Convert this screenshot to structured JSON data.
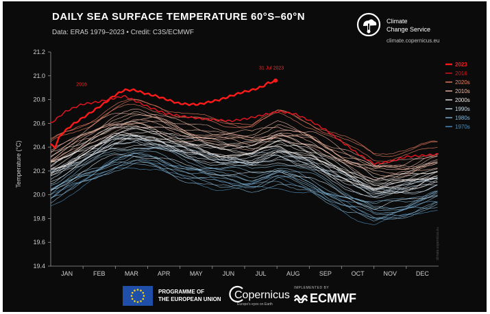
{
  "header": {
    "title": "DAILY SEA SURFACE TEMPERATURE 60°S–60°N",
    "subtitle": "Data: ERA5 1979–2023 • Credit: C3S/ECMWF"
  },
  "brand": {
    "c3s_line1": "Climate",
    "c3s_line2": "Change Service",
    "c3s_url": "climate.copernicus.eu",
    "eu_line1": "PROGRAMME OF",
    "eu_line2": "THE EUROPEAN UNION",
    "copernicus": "Copernicus",
    "copernicus_tagline": "Europe's eyes on Earth",
    "ecmwf_small": "IMPLEMENTED BY",
    "ecmwf": "ECMWF",
    "watermark": "climate.copernicus.eu"
  },
  "colors": {
    "background": "#0b0b0b",
    "highlight_2023": "#ff1a1a",
    "highlight_2016": "#e0151f",
    "decade_2020s": "#f08060",
    "decade_2010s": "#f0b8a4",
    "decade_2000s": "#f0e8e4",
    "decade_1990s": "#c8dcea",
    "decade_1980s": "#84b6d6",
    "decade_1970s": "#4f8fc0"
  },
  "chart_data": {
    "type": "line",
    "title": "DAILY SEA SURFACE TEMPERATURE 60°S–60°N",
    "xlabel": "",
    "ylabel": "Temperature (°C)",
    "categories": [
      "JAN",
      "FEB",
      "MAR",
      "APR",
      "MAY",
      "JUN",
      "JUL",
      "AUG",
      "SEP",
      "OCT",
      "NOV",
      "DEC"
    ],
    "ylim": [
      19.4,
      21.2
    ],
    "yticks": [
      "19.4",
      "19.6",
      "19.8",
      "20.0",
      "20.2",
      "20.4",
      "20.6",
      "20.8",
      "21.0",
      "21.2"
    ],
    "grid": false,
    "legend_position": "right",
    "legend": [
      {
        "label": "2023",
        "color": "#ff1a1a",
        "bold": true
      },
      {
        "label": "2016",
        "color": "#e0151f",
        "bold": false
      },
      {
        "label": "2020s",
        "color": "#f08060",
        "bold": false
      },
      {
        "label": "2010s",
        "color": "#f0b8a4",
        "bold": false
      },
      {
        "label": "2000s",
        "color": "#f0e8e4",
        "bold": false
      },
      {
        "label": "1990s",
        "color": "#c8dcea",
        "bold": false
      },
      {
        "label": "1980s",
        "color": "#84b6d6",
        "bold": false
      },
      {
        "label": "1970s",
        "color": "#4f8fc0",
        "bold": false
      }
    ],
    "annotations": [
      {
        "label": "31 Jul 2023",
        "x_day": 212,
        "y": 20.96
      },
      {
        "label": "2016",
        "x_day": 30,
        "y": 20.88
      }
    ],
    "series": [
      {
        "name": "2023",
        "color": "#ff1a1a",
        "width": 2.4,
        "points": [
          [
            1,
            20.42
          ],
          [
            5,
            20.4
          ],
          [
            10,
            20.5
          ],
          [
            20,
            20.58
          ],
          [
            30,
            20.64
          ],
          [
            40,
            20.7
          ],
          [
            50,
            20.76
          ],
          [
            60,
            20.83
          ],
          [
            70,
            20.88
          ],
          [
            80,
            20.88
          ],
          [
            90,
            20.85
          ],
          [
            100,
            20.83
          ],
          [
            110,
            20.8
          ],
          [
            120,
            20.77
          ],
          [
            130,
            20.76
          ],
          [
            140,
            20.76
          ],
          [
            150,
            20.78
          ],
          [
            160,
            20.8
          ],
          [
            170,
            20.83
          ],
          [
            180,
            20.86
          ],
          [
            190,
            20.88
          ],
          [
            200,
            20.91
          ],
          [
            205,
            20.94
          ],
          [
            210,
            20.95
          ],
          [
            212,
            20.96
          ]
        ]
      },
      {
        "name": "2016",
        "color": "#e0151f",
        "width": 1.5,
        "points": [
          [
            1,
            20.6
          ],
          [
            15,
            20.7
          ],
          [
            30,
            20.76
          ],
          [
            45,
            20.78
          ],
          [
            60,
            20.81
          ],
          [
            70,
            20.83
          ],
          [
            80,
            20.79
          ],
          [
            95,
            20.73
          ],
          [
            110,
            20.68
          ],
          [
            125,
            20.66
          ],
          [
            140,
            20.64
          ],
          [
            155,
            20.63
          ],
          [
            170,
            20.62
          ],
          [
            185,
            20.64
          ],
          [
            200,
            20.67
          ],
          [
            215,
            20.7
          ],
          [
            230,
            20.68
          ],
          [
            245,
            20.62
          ],
          [
            260,
            20.54
          ],
          [
            275,
            20.44
          ],
          [
            290,
            20.34
          ],
          [
            305,
            20.26
          ],
          [
            320,
            20.28
          ],
          [
            335,
            20.32
          ],
          [
            350,
            20.33
          ],
          [
            365,
            20.34
          ]
        ]
      }
    ],
    "climatology_decades": [
      {
        "decade": "1970s",
        "color": "#4f8fc0",
        "years": 2,
        "base": [
          [
            1,
            19.95
          ],
          [
            30,
            20.1
          ],
          [
            60,
            20.25
          ],
          [
            80,
            20.28
          ],
          [
            100,
            20.26
          ],
          [
            130,
            20.17
          ],
          [
            160,
            20.1
          ],
          [
            190,
            20.08
          ],
          [
            215,
            20.12
          ],
          [
            245,
            20.05
          ],
          [
            275,
            19.9
          ],
          [
            305,
            19.78
          ],
          [
            335,
            19.84
          ],
          [
            365,
            19.92
          ]
        ]
      },
      {
        "decade": "1980s",
        "color": "#84b6d6",
        "years": 10,
        "base": [
          [
            1,
            20.02
          ],
          [
            30,
            20.16
          ],
          [
            60,
            20.3
          ],
          [
            80,
            20.33
          ],
          [
            100,
            20.31
          ],
          [
            130,
            20.22
          ],
          [
            160,
            20.15
          ],
          [
            190,
            20.13
          ],
          [
            215,
            20.18
          ],
          [
            245,
            20.1
          ],
          [
            275,
            19.97
          ],
          [
            305,
            19.85
          ],
          [
            335,
            19.9
          ],
          [
            365,
            19.98
          ]
        ]
      },
      {
        "decade": "1990s",
        "color": "#c8dcea",
        "years": 10,
        "base": [
          [
            1,
            20.12
          ],
          [
            30,
            20.26
          ],
          [
            60,
            20.4
          ],
          [
            80,
            20.43
          ],
          [
            100,
            20.4
          ],
          [
            130,
            20.32
          ],
          [
            160,
            20.26
          ],
          [
            190,
            20.24
          ],
          [
            215,
            20.3
          ],
          [
            245,
            20.22
          ],
          [
            275,
            20.09
          ],
          [
            305,
            19.97
          ],
          [
            335,
            20.01
          ],
          [
            365,
            20.08
          ]
        ]
      },
      {
        "decade": "2000s",
        "color": "#f0e8e4",
        "years": 10,
        "base": [
          [
            1,
            20.22
          ],
          [
            30,
            20.36
          ],
          [
            60,
            20.5
          ],
          [
            80,
            20.53
          ],
          [
            100,
            20.5
          ],
          [
            130,
            20.42
          ],
          [
            160,
            20.36
          ],
          [
            190,
            20.35
          ],
          [
            215,
            20.42
          ],
          [
            245,
            20.34
          ],
          [
            275,
            20.2
          ],
          [
            305,
            20.08
          ],
          [
            335,
            20.11
          ],
          [
            365,
            20.18
          ]
        ]
      },
      {
        "decade": "2010s",
        "color": "#f0b8a4",
        "years": 9,
        "base": [
          [
            1,
            20.3
          ],
          [
            30,
            20.45
          ],
          [
            60,
            20.59
          ],
          [
            80,
            20.63
          ],
          [
            100,
            20.6
          ],
          [
            130,
            20.51
          ],
          [
            160,
            20.46
          ],
          [
            190,
            20.45
          ],
          [
            215,
            20.52
          ],
          [
            245,
            20.45
          ],
          [
            275,
            20.31
          ],
          [
            305,
            20.19
          ],
          [
            335,
            20.21
          ],
          [
            365,
            20.28
          ]
        ]
      },
      {
        "decade": "2020s",
        "color": "#f08060",
        "years": 3,
        "base": [
          [
            1,
            20.4
          ],
          [
            30,
            20.55
          ],
          [
            60,
            20.69
          ],
          [
            80,
            20.73
          ],
          [
            100,
            20.7
          ],
          [
            130,
            20.61
          ],
          [
            160,
            20.56
          ],
          [
            190,
            20.55
          ],
          [
            215,
            20.63
          ],
          [
            245,
            20.56
          ],
          [
            275,
            20.42
          ],
          [
            305,
            20.3
          ],
          [
            335,
            20.32
          ],
          [
            365,
            20.38
          ]
        ]
      }
    ]
  }
}
